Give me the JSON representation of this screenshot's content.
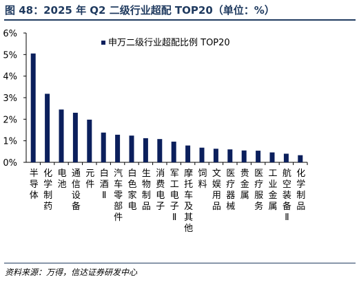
{
  "figure_title": "图 48：2025 年 Q2 二级行业超配 TOP20（单位：%）",
  "source": "资料来源：万得，信达证券研发中心",
  "colors": {
    "bar": "#0b1f5c",
    "title": "#1f3a5f",
    "axis": "#000000"
  },
  "chart_data": {
    "type": "bar",
    "legend": {
      "label": "申万二级行业超配比例 TOP20",
      "position": "top"
    },
    "categories": [
      "半导体",
      "化学制药",
      "电池",
      "通信设备",
      "元件",
      "白酒Ⅱ",
      "汽车零部件",
      "白色家电",
      "生物制品",
      "消费电子",
      "军工电子Ⅱ",
      "摩托车及其他",
      "饲料",
      "文娱用品",
      "医疗器械",
      "贵金属",
      "医疗服务",
      "工业金属",
      "航空装备Ⅱ",
      "化学制品"
    ],
    "series": [
      {
        "name": "申万二级行业超配比例 TOP20",
        "values": [
          5.05,
          3.18,
          2.45,
          2.3,
          1.98,
          1.38,
          1.28,
          1.24,
          1.12,
          1.08,
          0.96,
          0.78,
          0.68,
          0.63,
          0.6,
          0.55,
          0.54,
          0.46,
          0.4,
          0.33
        ]
      }
    ],
    "yticks": [
      "0%",
      "1%",
      "2%",
      "3%",
      "4%",
      "5%",
      "6%"
    ],
    "ylim": [
      0,
      6
    ],
    "grid": false
  }
}
